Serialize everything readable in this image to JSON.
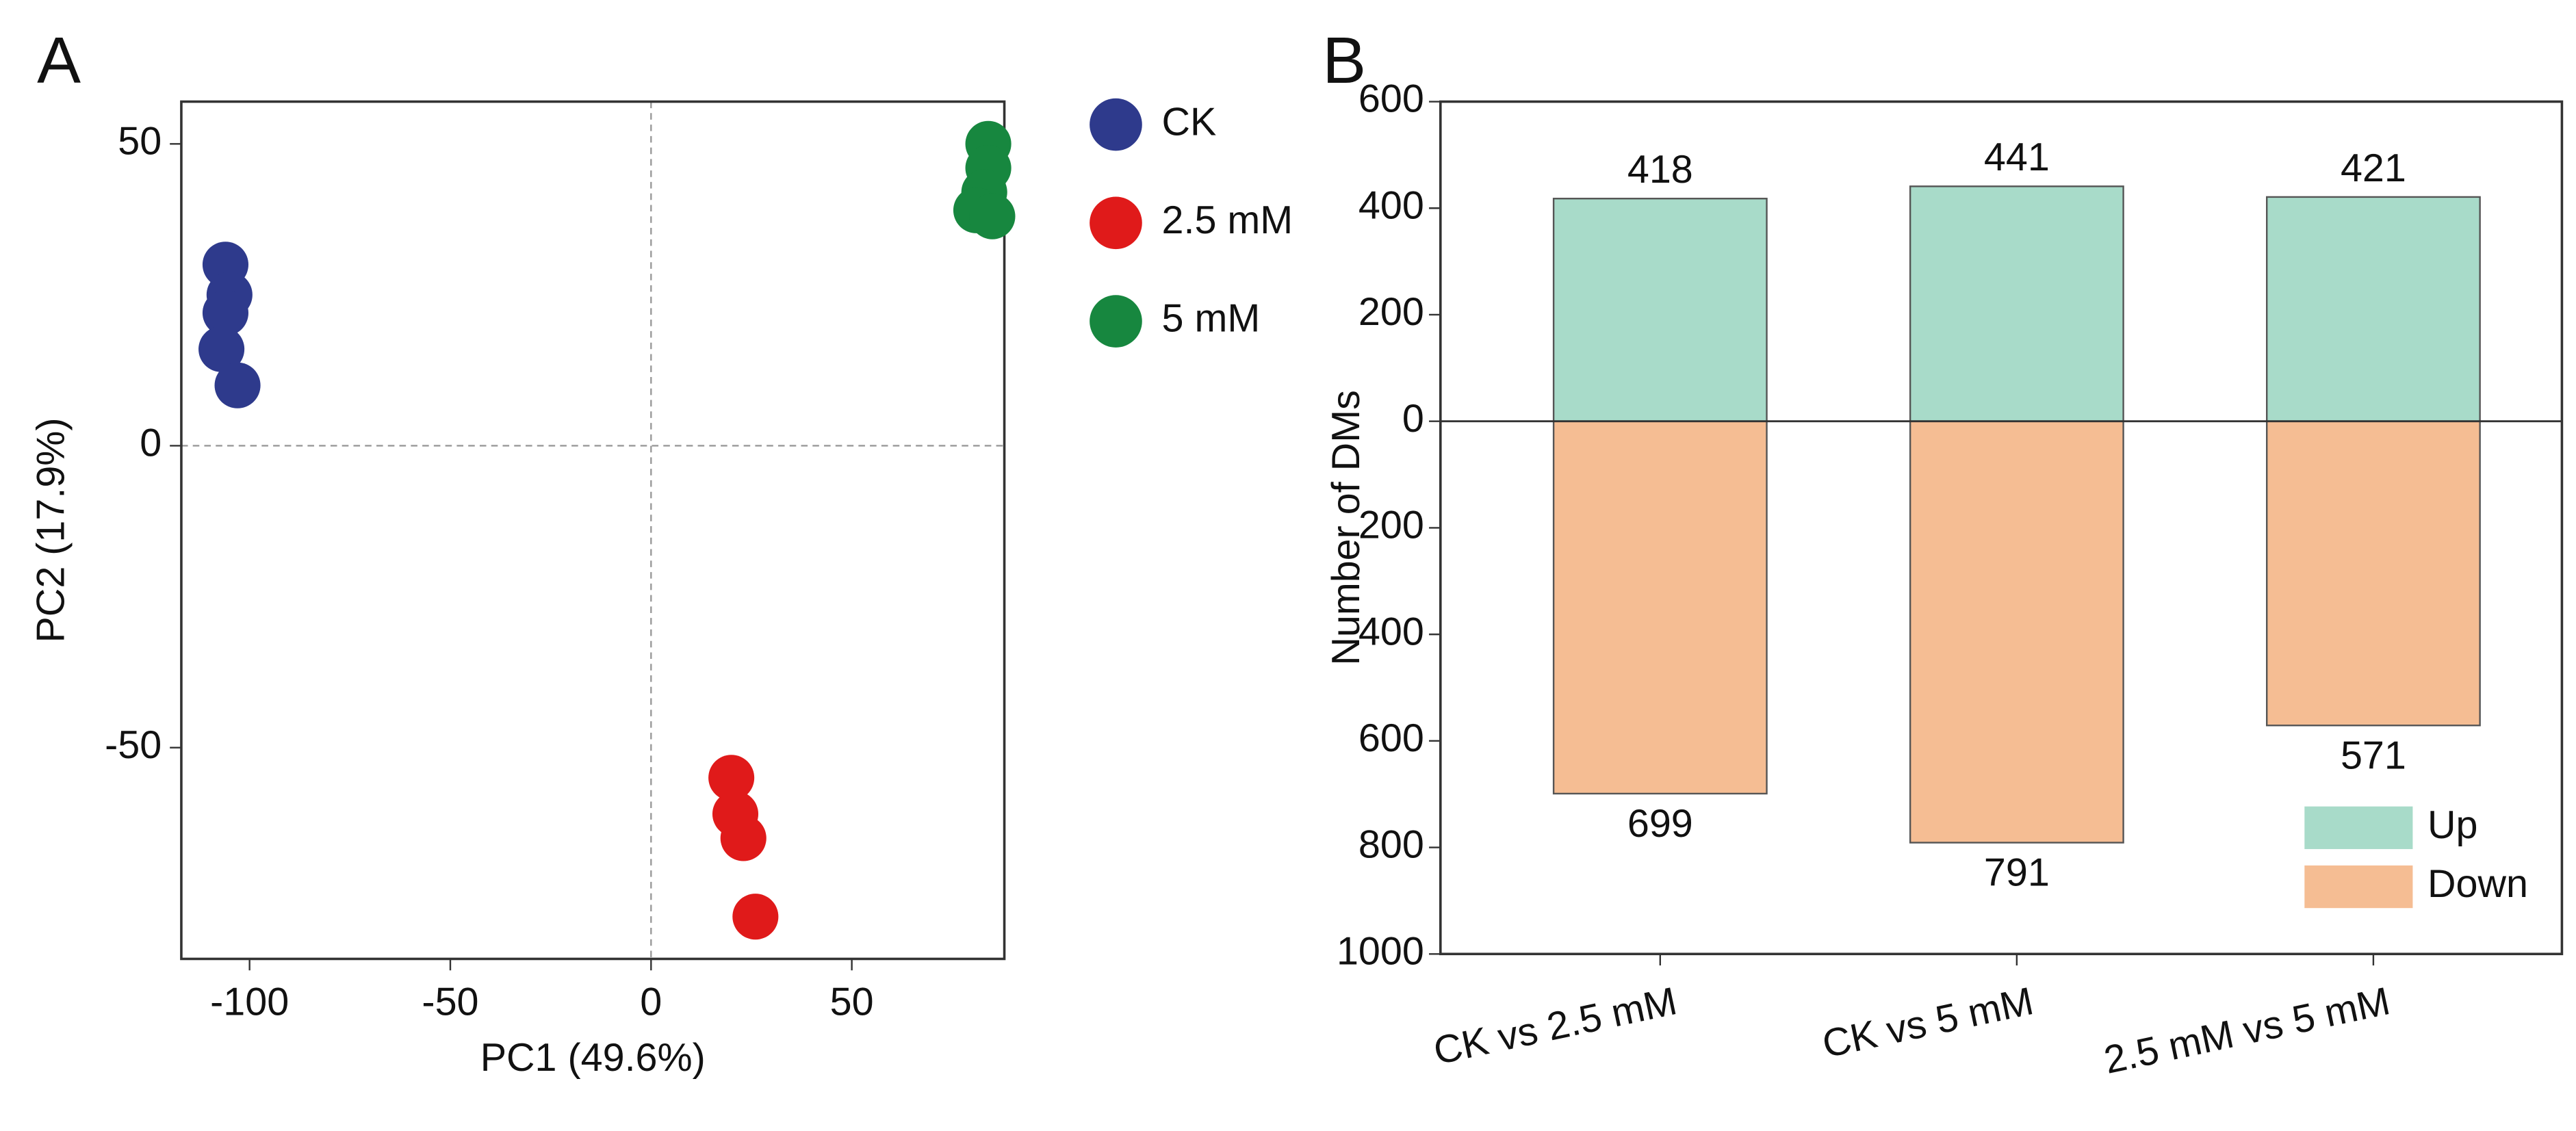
{
  "chart_data": [
    {
      "type": "scatter",
      "panel": "A",
      "xlabel": "PC1 (49.6%)",
      "ylabel": "PC2 (17.9%)",
      "xlim": [
        -117,
        88
      ],
      "ylim": [
        -85,
        57
      ],
      "xticks": [
        -100,
        -50,
        0,
        50
      ],
      "yticks": [
        -50,
        0,
        50
      ],
      "series": [
        {
          "name": "CK",
          "color": "#2e3a8c",
          "x": [
            -106,
            -105,
            -106,
            -107,
            -103
          ],
          "values": [
            30,
            25,
            22,
            16,
            10
          ]
        },
        {
          "name": "2.5 mM",
          "color": "#e01a1a",
          "x": [
            20,
            21,
            23,
            26
          ],
          "values": [
            -55,
            -61,
            -65,
            -78
          ]
        },
        {
          "name": "5 mM",
          "color": "#17873f",
          "x": [
            84,
            84,
            83,
            81,
            85
          ],
          "values": [
            50,
            46,
            42,
            39,
            38
          ]
        }
      ]
    },
    {
      "type": "bar",
      "panel": "B",
      "ylabel": "Number of DMs",
      "categories": [
        "CK vs 2.5 mM",
        "CK vs 5 mM",
        "2.5 mM vs 5 mM"
      ],
      "ylim": [
        -1000,
        600
      ],
      "yticks": [
        {
          "value": -1000,
          "label": "1000"
        },
        {
          "value": -800,
          "label": "800"
        },
        {
          "value": -600,
          "label": "600"
        },
        {
          "value": -400,
          "label": "400"
        },
        {
          "value": -200,
          "label": "200"
        },
        0,
        200,
        400,
        600
      ],
      "legend": "lower right",
      "series": [
        {
          "name": "Up",
          "color": "#a8dbc9",
          "values": [
            418,
            441,
            421
          ]
        },
        {
          "name": "Down",
          "color": "#f5bd93",
          "values": [
            -699,
            -791,
            -571
          ],
          "value_labels": [
            "699",
            "791",
            "571"
          ]
        }
      ]
    }
  ]
}
